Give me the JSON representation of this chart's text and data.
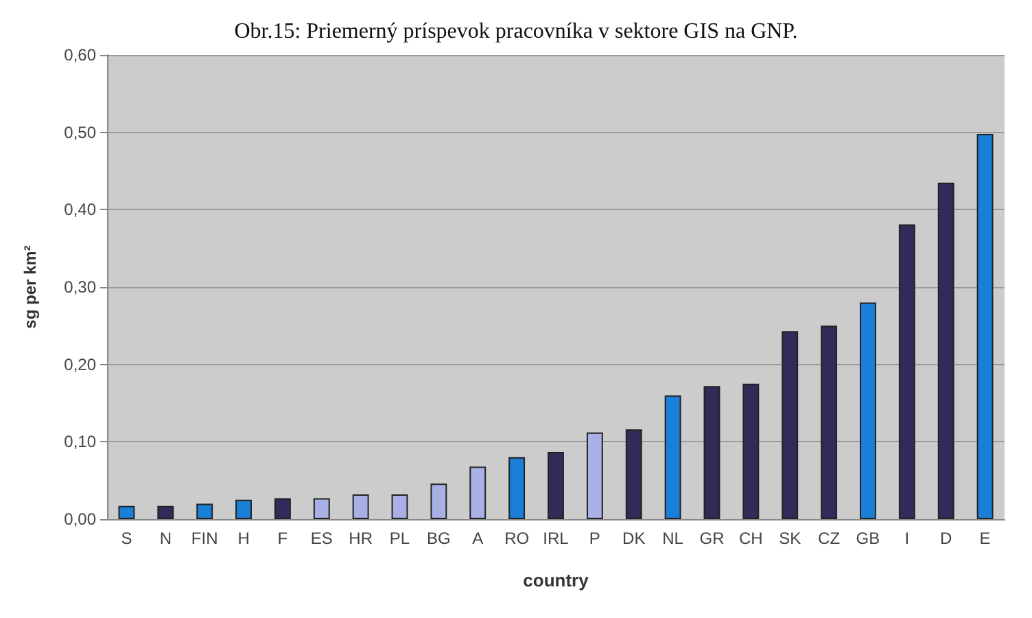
{
  "chart_data": {
    "type": "bar",
    "title": "Obr.15: Priemerný príspevok pracovníka v sektore GIS na GNP.",
    "xlabel": "country",
    "ylabel": "sg per km²",
    "categories": [
      "S",
      "N",
      "FIN",
      "H",
      "F",
      "ES",
      "HR",
      "PL",
      "BG",
      "A",
      "RO",
      "IRL",
      "P",
      "DK",
      "NL",
      "GR",
      "CH",
      "SK",
      "CZ",
      "GB",
      "I",
      "D",
      "E"
    ],
    "values": [
      0.017,
      0.017,
      0.02,
      0.025,
      0.027,
      0.027,
      0.032,
      0.032,
      0.046,
      0.068,
      0.08,
      0.087,
      0.112,
      0.116,
      0.16,
      0.172,
      0.175,
      0.243,
      0.25,
      0.28,
      0.381,
      0.435,
      0.498
    ],
    "colors": [
      "#1a7fd6",
      "#322a58",
      "#1a7fd6",
      "#1a7fd6",
      "#322a58",
      "#a9b0e6",
      "#a9b0e6",
      "#a9b0e6",
      "#a9b0e6",
      "#a9b0e6",
      "#1a7fd6",
      "#322a58",
      "#a9b0e6",
      "#322a58",
      "#1a7fd6",
      "#322a58",
      "#322a58",
      "#322a58",
      "#322a58",
      "#1a7fd6",
      "#322a58",
      "#322a58",
      "#1a7fd6"
    ],
    "ylim": [
      0,
      0.6
    ],
    "yticks": [
      {
        "value": 0,
        "label": "0,00"
      },
      {
        "value": 0.1,
        "label": "0,10"
      },
      {
        "value": 0.2,
        "label": "0,20"
      },
      {
        "value": 0.3,
        "label": "0,30"
      },
      {
        "value": 0.4,
        "label": "0,40"
      },
      {
        "value": 0.5,
        "label": "0,50"
      },
      {
        "value": 0.6,
        "label": "0,60"
      }
    ],
    "grid": "y"
  }
}
